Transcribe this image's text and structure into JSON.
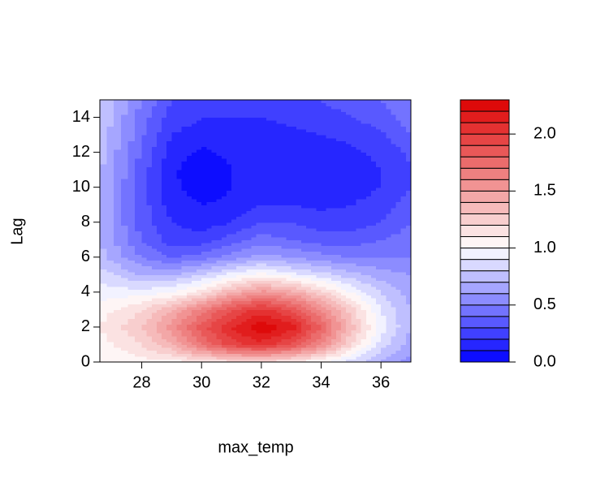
{
  "chart_data": {
    "type": "filled_contour",
    "x_label": "max_temp",
    "y_label": "Lag",
    "x": [
      26.6,
      28,
      29,
      30,
      31,
      32,
      33,
      34,
      35,
      36,
      37
    ],
    "y": [
      0,
      1,
      2,
      3,
      4,
      5,
      6,
      7,
      8,
      9,
      10,
      11,
      12,
      13,
      14,
      15
    ],
    "z": [
      [
        1.0,
        1.05,
        1.05,
        1.1,
        1.15,
        1.15,
        1.1,
        1.0,
        0.85,
        0.7,
        0.55
      ],
      [
        1.05,
        1.2,
        1.4,
        1.7,
        1.95,
        2.05,
        1.9,
        1.6,
        1.2,
        0.85,
        0.65
      ],
      [
        1.1,
        1.3,
        1.55,
        1.85,
        2.1,
        2.3,
        2.15,
        1.8,
        1.35,
        0.95,
        0.7
      ],
      [
        1.05,
        1.2,
        1.4,
        1.65,
        1.9,
        2.05,
        1.9,
        1.6,
        1.25,
        0.9,
        0.7
      ],
      [
        0.95,
        0.95,
        1.0,
        1.15,
        1.4,
        1.55,
        1.45,
        1.25,
        1.0,
        0.8,
        0.65
      ],
      [
        0.85,
        0.7,
        0.7,
        0.8,
        0.95,
        1.05,
        0.95,
        0.85,
        0.75,
        0.65,
        0.6
      ],
      [
        0.75,
        0.5,
        0.4,
        0.45,
        0.55,
        0.65,
        0.6,
        0.55,
        0.5,
        0.5,
        0.5
      ],
      [
        0.7,
        0.4,
        0.25,
        0.25,
        0.35,
        0.45,
        0.4,
        0.35,
        0.35,
        0.4,
        0.45
      ],
      [
        0.7,
        0.35,
        0.2,
        0.15,
        0.2,
        0.3,
        0.3,
        0.25,
        0.25,
        0.3,
        0.4
      ],
      [
        0.7,
        0.35,
        0.15,
        0.1,
        0.12,
        0.2,
        0.2,
        0.18,
        0.2,
        0.25,
        0.35
      ],
      [
        0.7,
        0.35,
        0.12,
        0.05,
        0.1,
        0.15,
        0.15,
        0.15,
        0.15,
        0.2,
        0.3
      ],
      [
        0.72,
        0.35,
        0.12,
        0.03,
        0.1,
        0.15,
        0.15,
        0.15,
        0.15,
        0.2,
        0.3
      ],
      [
        0.75,
        0.38,
        0.15,
        0.08,
        0.12,
        0.15,
        0.15,
        0.15,
        0.18,
        0.22,
        0.32
      ],
      [
        0.78,
        0.42,
        0.2,
        0.15,
        0.15,
        0.17,
        0.18,
        0.2,
        0.22,
        0.28,
        0.4
      ],
      [
        0.8,
        0.45,
        0.25,
        0.2,
        0.2,
        0.2,
        0.22,
        0.25,
        0.3,
        0.35,
        0.45
      ],
      [
        0.82,
        0.5,
        0.3,
        0.25,
        0.22,
        0.22,
        0.25,
        0.3,
        0.35,
        0.4,
        0.5
      ]
    ],
    "xlim": [
      26.6,
      37
    ],
    "ylim": [
      0,
      15
    ],
    "xticks": [
      28,
      30,
      32,
      34,
      36
    ],
    "yticks": [
      0,
      2,
      4,
      6,
      8,
      10,
      12,
      14
    ],
    "levels": [
      0,
      0.1,
      0.2,
      0.3,
      0.4,
      0.5,
      0.6,
      0.7,
      0.8,
      0.9,
      1.0,
      1.1,
      1.2,
      1.3,
      1.4,
      1.5,
      1.6,
      1.7,
      1.8,
      1.9,
      2.0,
      2.1,
      2.2,
      2.3
    ],
    "low_color": "#0000ff",
    "mid_color": "#ffffff",
    "high_color": "#dd0000",
    "mid_level": 1.0,
    "zticks": [
      {
        "value": 0,
        "label": "0.0"
      },
      {
        "value": 0.5,
        "label": "0.5"
      },
      {
        "value": 1.0,
        "label": "1.0"
      },
      {
        "value": 1.5,
        "label": "1.5"
      },
      {
        "value": 2.0,
        "label": "2.0"
      }
    ]
  }
}
